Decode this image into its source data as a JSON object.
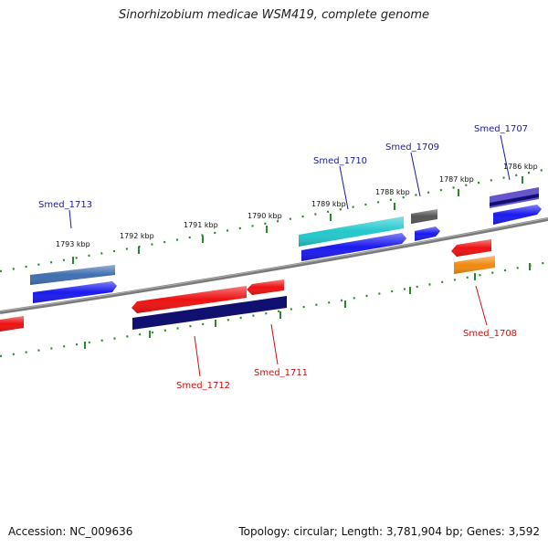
{
  "header": {
    "title": "Sinorhizobium medicae WSM419, complete genome"
  },
  "footer": {
    "accession": "Accession: NC_009636",
    "summary": "Topology: circular; Length: 3,781,904 bp; Genes: 3,592"
  },
  "colors": {
    "backbone": "#808080",
    "ticks": "#2a8a2a",
    "label_forward": "#1a1aa8",
    "label_reverse": "#cc1111",
    "blue": "#1a1aee",
    "steelblue": "#3f6fb0",
    "cyan": "#22c8cc",
    "gray": "#555555",
    "red": "#ee1111",
    "navy": "#101070",
    "orange": "#f08a10",
    "purple": "#6655cc"
  },
  "scale_ticks": [
    "1793 kbp",
    "1792 kbp",
    "1791 kbp",
    "1790 kbp",
    "1789 kbp",
    "1788 kbp",
    "1787 kbp",
    "1786 kbp"
  ],
  "genes": {
    "forward": [
      "Smed_1713",
      "Smed_1710",
      "Smed_1709",
      "Smed_1707"
    ],
    "reverse": [
      "Smed_1712",
      "Smed_1711",
      "Smed_1708"
    ]
  }
}
